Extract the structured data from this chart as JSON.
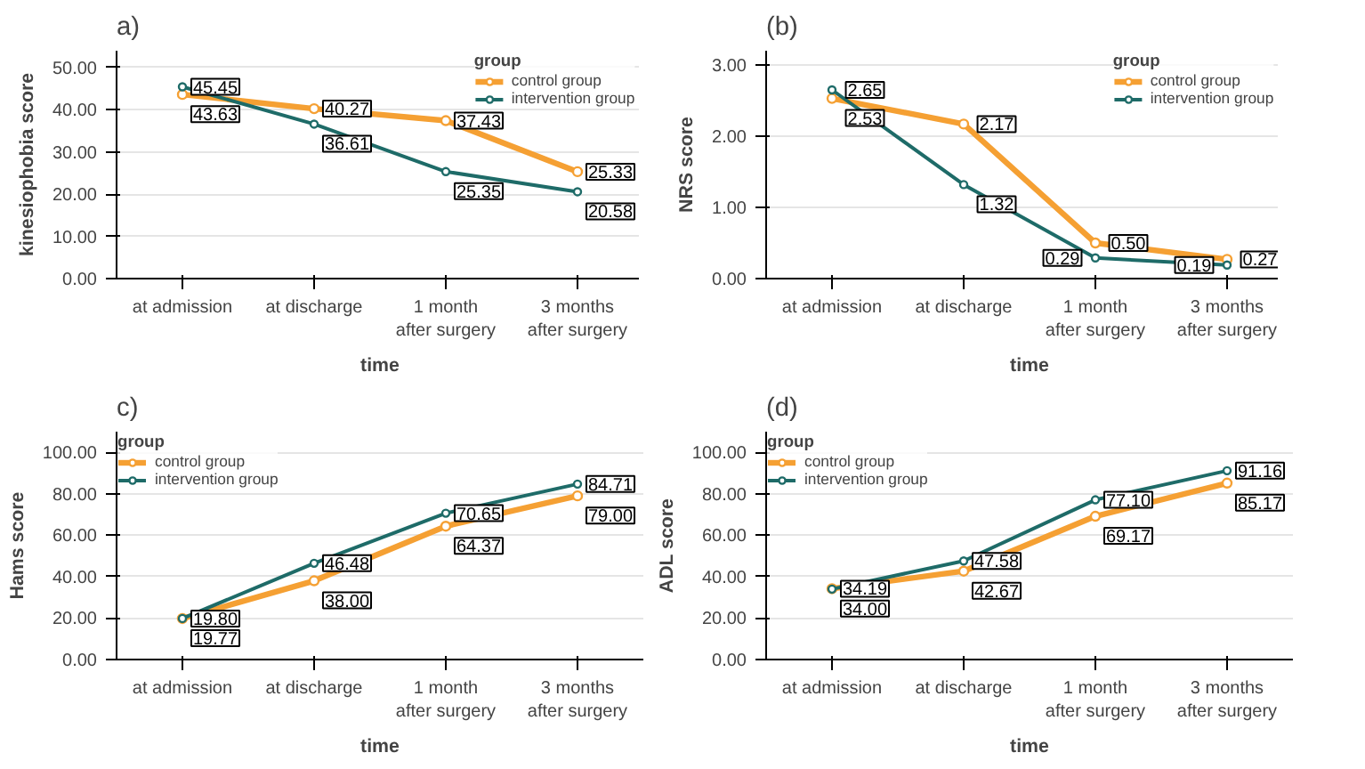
{
  "chart_data": [
    {
      "type": "line",
      "title": "a)",
      "xlabel": "time",
      "ylabel": "kinesiophobia score",
      "legend_title": "group",
      "categories": [
        "at admission",
        "at discharge",
        "1 month after surgery",
        "3 months after surgery"
      ],
      "ylim": [
        0,
        54
      ],
      "yticks": [
        {
          "value": 0,
          "label": "0.00"
        },
        {
          "value": 10,
          "label": "10.00"
        },
        {
          "value": 20,
          "label": "20.00"
        },
        {
          "value": 30,
          "label": "30.00"
        },
        {
          "value": 40,
          "label": "40.00"
        },
        {
          "value": 50,
          "label": "50.00"
        }
      ],
      "grid": "y",
      "legend": "top right",
      "marker": "circle",
      "line_style": "solid",
      "series": [
        {
          "name": "control group",
          "color": "#f5a033",
          "values": [
            43.63,
            40.27,
            37.43,
            25.33
          ],
          "value_labels": [
            "43.63",
            "40.27",
            "37.43",
            "25.33"
          ]
        },
        {
          "name": "intervention group",
          "color": "#1e6b68",
          "values": [
            45.45,
            36.61,
            25.35,
            20.58
          ],
          "value_labels": [
            "45.45",
            "36.61",
            "25.35",
            "20.58"
          ]
        }
      ]
    },
    {
      "type": "line",
      "title": "(b)",
      "xlabel": "time",
      "ylabel": "NRS score",
      "legend_title": "group",
      "categories": [
        "at admission",
        "at discharge",
        "1 month after surgery",
        "3 months after surgery"
      ],
      "ylim": [
        0,
        3.2
      ],
      "yticks": [
        {
          "value": 0,
          "label": "0.00"
        },
        {
          "value": 1,
          "label": "1.00"
        },
        {
          "value": 2,
          "label": "2.00"
        },
        {
          "value": 3,
          "label": "3.00"
        }
      ],
      "grid": "y",
      "legend": "top right",
      "marker": "circle",
      "line_style": "solid",
      "series": [
        {
          "name": "control group",
          "color": "#f5a033",
          "values": [
            2.53,
            2.17,
            0.5,
            0.27
          ],
          "value_labels": [
            "2.53",
            "2.17",
            "0.50",
            "0.27"
          ]
        },
        {
          "name": "intervention group",
          "color": "#1e6b68",
          "values": [
            2.65,
            1.32,
            0.29,
            0.19
          ],
          "value_labels": [
            "2.65",
            "1.32",
            "0.29",
            "0.19"
          ]
        }
      ]
    },
    {
      "type": "line",
      "title": "c)",
      "xlabel": "time",
      "ylabel": "Hams score",
      "legend_title": "group",
      "categories": [
        "at admission",
        "at discharge",
        "1 month after surgery",
        "3 months after surgery"
      ],
      "ylim": [
        0,
        110
      ],
      "yticks": [
        {
          "value": 0,
          "label": "0.00"
        },
        {
          "value": 20,
          "label": "20.00"
        },
        {
          "value": 40,
          "label": "40.00"
        },
        {
          "value": 60,
          "label": "60.00"
        },
        {
          "value": 80,
          "label": "80.00"
        },
        {
          "value": 100,
          "label": "100.00"
        }
      ],
      "grid": "y",
      "legend": "top left",
      "marker": "circle",
      "line_style": "solid",
      "series": [
        {
          "name": "control group",
          "color": "#f5a033",
          "values": [
            19.77,
            38.0,
            64.37,
            79.0
          ],
          "value_labels": [
            "19.77",
            "38.00",
            "64.37",
            "79.00"
          ]
        },
        {
          "name": "intervention group",
          "color": "#1e6b68",
          "values": [
            19.8,
            46.48,
            70.65,
            84.71
          ],
          "value_labels": [
            "19.80",
            "46.48",
            "70.65",
            "84.71"
          ]
        }
      ]
    },
    {
      "type": "line",
      "title": "(d)",
      "xlabel": "time",
      "ylabel": "ADL score",
      "legend_title": "group",
      "categories": [
        "at admission",
        "at discharge",
        "1 month after surgery",
        "3 months after surgery"
      ],
      "ylim": [
        0,
        110
      ],
      "yticks": [
        {
          "value": 0,
          "label": "0.00"
        },
        {
          "value": 20,
          "label": "20.00"
        },
        {
          "value": 40,
          "label": "40.00"
        },
        {
          "value": 60,
          "label": "60.00"
        },
        {
          "value": 80,
          "label": "80.00"
        },
        {
          "value": 100,
          "label": "100.00"
        }
      ],
      "grid": "y",
      "legend": "top left",
      "marker": "circle",
      "line_style": "solid",
      "series": [
        {
          "name": "control group",
          "color": "#f5a033",
          "values": [
            34.19,
            42.67,
            69.17,
            85.17
          ],
          "value_labels": [
            "34.19",
            "42.67",
            "69.17",
            "85.17"
          ]
        },
        {
          "name": "intervention group",
          "color": "#1e6b68",
          "values": [
            34.0,
            47.58,
            77.1,
            91.16
          ],
          "value_labels": [
            "34.00",
            "47.58",
            "77.10",
            "91.16"
          ]
        }
      ]
    }
  ]
}
